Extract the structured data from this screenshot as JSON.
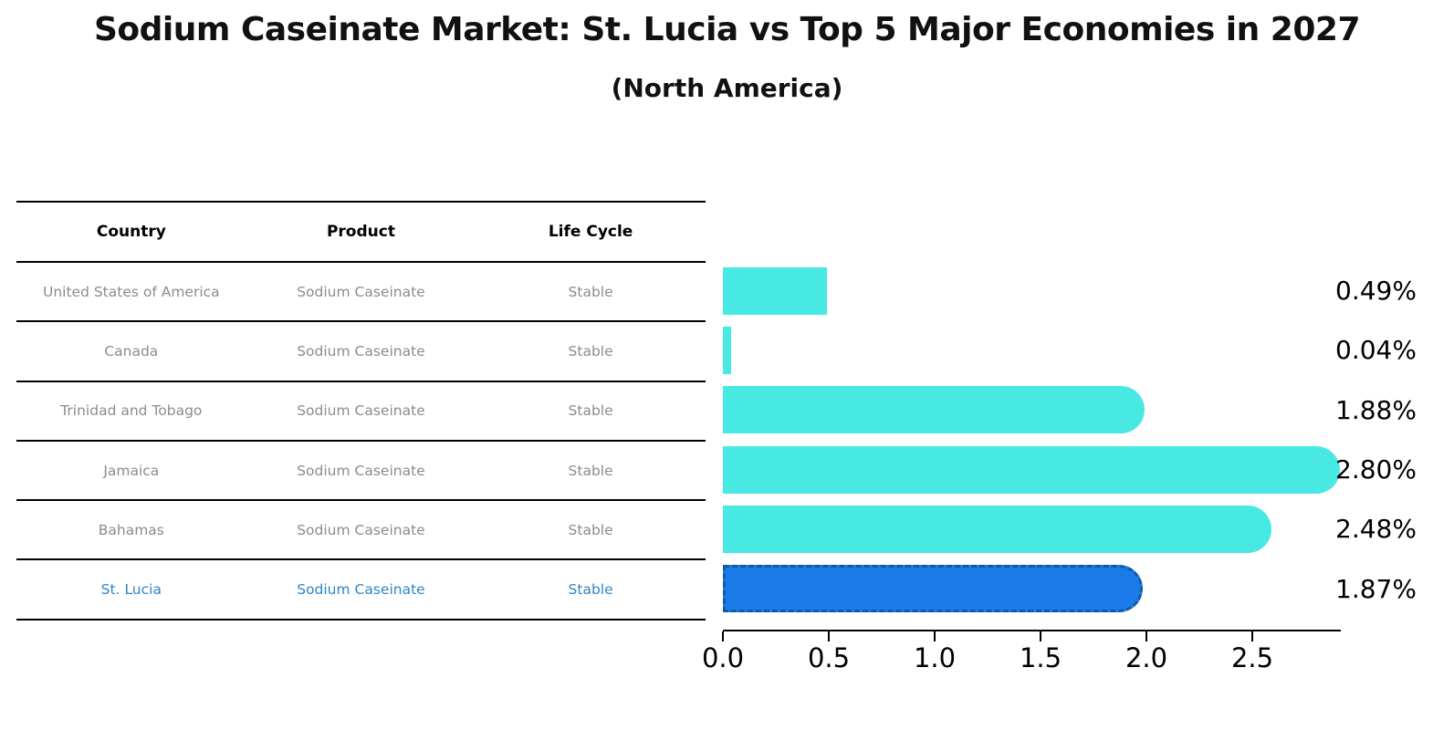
{
  "title": "Sodium Caseinate Market: St. Lucia vs Top 5 Major Economies in 2027",
  "subtitle": "(North America)",
  "table": {
    "columns": {
      "country": "Country",
      "product": "Product",
      "life_cycle": "Life Cycle"
    },
    "rows": [
      {
        "country": "United States of America",
        "product": "Sodium Caseinate",
        "life_cycle": "Stable"
      },
      {
        "country": "Canada",
        "product": "Sodium Caseinate",
        "life_cycle": "Stable"
      },
      {
        "country": "Trinidad and Tobago",
        "product": "Sodium Caseinate",
        "life_cycle": "Stable"
      },
      {
        "country": "Jamaica",
        "product": "Sodium Caseinate",
        "life_cycle": "Stable"
      },
      {
        "country": "Bahamas",
        "product": "Sodium Caseinate",
        "life_cycle": "Stable"
      },
      {
        "country": "St. Lucia",
        "product": "Sodium Caseinate",
        "life_cycle": "Stable"
      }
    ]
  },
  "chart_data": {
    "type": "bar",
    "orientation": "horizontal",
    "title": "Sodium Caseinate Market: St. Lucia vs Top 5 Major Economies in 2027 (North America)",
    "categories": [
      "United States of America",
      "Canada",
      "Trinidad and Tobago",
      "Jamaica",
      "Bahamas",
      "St. Lucia"
    ],
    "values": [
      0.49,
      0.04,
      1.88,
      2.8,
      2.48,
      1.87
    ],
    "value_labels": [
      "0.49%",
      "0.04%",
      "1.88%",
      "2.80%",
      "2.48%",
      "1.87%"
    ],
    "x_tick_labels": [
      "0.0",
      "0.5",
      "1.0",
      "1.5",
      "2.0",
      "2.5"
    ],
    "x_tick_values": [
      0,
      0.5,
      1,
      1.5,
      2,
      2.5
    ],
    "xlim": [
      0,
      2.918
    ],
    "grid": false,
    "legend": false,
    "bar_color": "#48e8e3",
    "highlight_color": "#1b7ce9",
    "highlight_border_color": "#1458a8",
    "highlight_index": 5,
    "highlight_text_color": "#2e86c8"
  }
}
